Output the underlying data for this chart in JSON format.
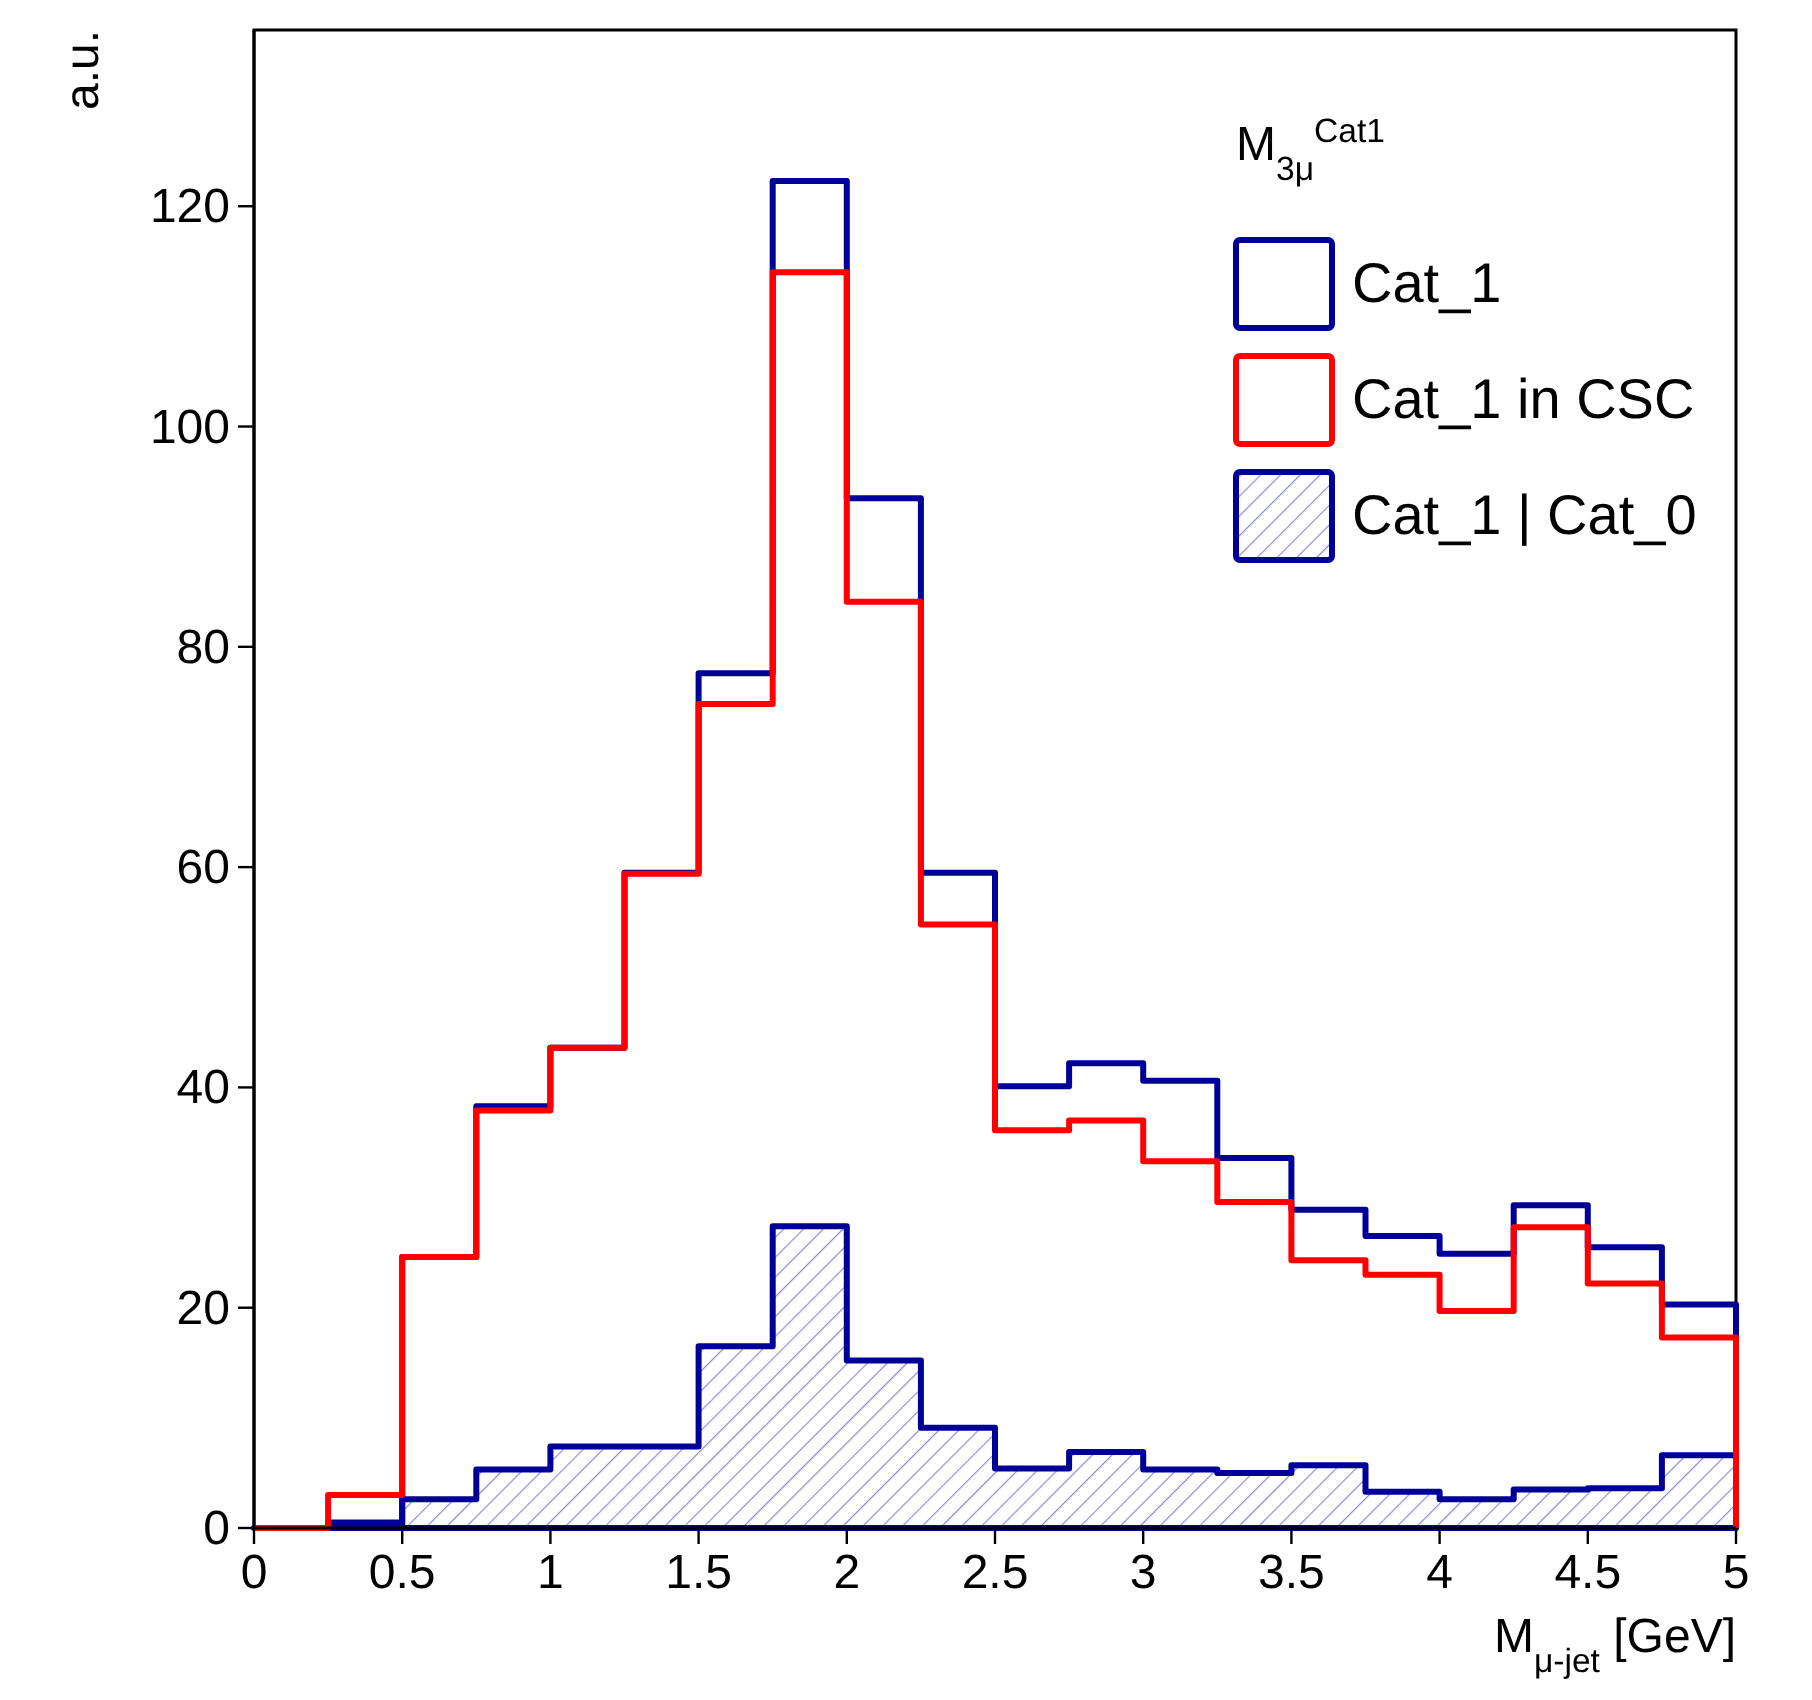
{
  "chart_data": {
    "type": "histogram",
    "xlabel": "M$_{μ-jet}$ [GeV]",
    "ylabel": "a.u.",
    "legend_title": "M$_{3μ}$$^{Cat1}$",
    "legend": "top right",
    "bins": [
      0,
      0.25,
      0.5,
      0.75,
      1,
      1.25,
      1.5,
      1.75,
      2,
      2.25,
      2.5,
      2.75,
      3,
      3.25,
      3.5,
      3.75,
      4,
      4.25,
      4.5,
      4.75,
      5
    ],
    "series": [
      {
        "name": "Cat_1",
        "color": "#000099",
        "values": [
          0,
          0.2,
          24.6,
          38.3,
          43.6,
          59.5,
          77.6,
          122.3,
          93.5,
          59.5,
          40.1,
          42.2,
          40.6,
          33.6,
          28.9,
          26.5,
          24.9,
          29.3,
          25.5,
          20.3
        ]
      },
      {
        "name": "Cat_1 in CSC",
        "color": "#ff0000",
        "values": [
          0,
          3,
          24.6,
          37.9,
          43.6,
          59.4,
          74.8,
          114,
          84.1,
          54.8,
          36.1,
          37,
          33.3,
          29.6,
          24.3,
          23,
          19.7,
          27.3,
          22.2,
          17.3
        ]
      },
      {
        "name": "Cat_1 | Cat_0",
        "type": "histogram",
        "color": "#000099",
        "values": [
          0,
          0.5,
          2.6,
          5.3,
          7.4,
          7.4,
          16.5,
          27.4,
          15.2,
          9.1,
          5.4,
          6.9,
          5.3,
          5,
          5.7,
          3.3,
          2.6,
          3.5,
          3.6,
          6.6
        ]
      }
    ],
    "xlim": [
      0,
      5
    ],
    "ylim": [
      0,
      136
    ],
    "xticks": [
      0,
      0.5,
      1,
      1.5,
      2,
      2.5,
      3,
      3.5,
      4,
      4.5,
      5
    ],
    "yticks": [
      0,
      20,
      40,
      60,
      80,
      100,
      120
    ]
  }
}
